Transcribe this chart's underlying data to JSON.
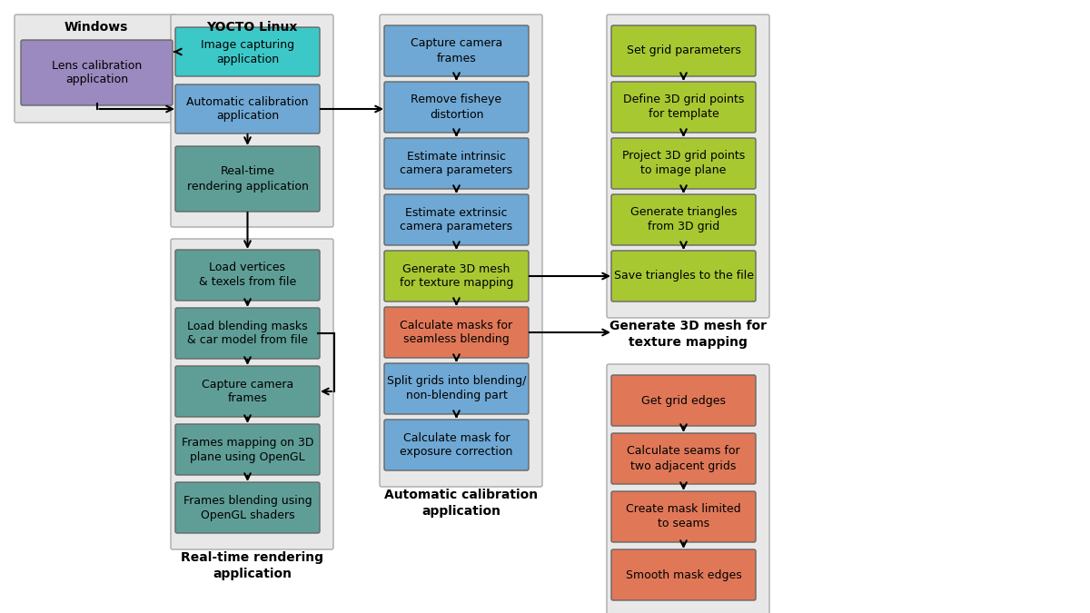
{
  "colors": {
    "purple": "#9b8abf",
    "teal_bright": "#3dc8c8",
    "blue_med": "#6fa8d4",
    "teal_dark": "#5f9e96",
    "green_bright": "#a8c832",
    "orange_red": "#e07858",
    "panel_bg": "#e8e8e8",
    "white_bg": "#ffffff"
  },
  "box_windows": {
    "text": "Lens calibration\napplication",
    "color": "purple"
  },
  "yocto_boxes_top": [
    {
      "text": "Image capturing\napplication",
      "color": "teal_bright"
    },
    {
      "text": "Automatic calibration\napplication",
      "color": "blue_med"
    },
    {
      "text": "Real-time\nrendering application",
      "color": "teal_dark"
    }
  ],
  "yocto_boxes_bottom": [
    {
      "text": "Load vertices\n& texels from file",
      "color": "teal_dark"
    },
    {
      "text": "Load blending masks\n& car model from file",
      "color": "teal_dark"
    },
    {
      "text": "Capture camera\nframes",
      "color": "teal_dark"
    },
    {
      "text": "Frames mapping on 3D\nplane using OpenGL",
      "color": "teal_dark"
    },
    {
      "text": "Frames blending using\nOpenGL shaders",
      "color": "teal_dark"
    }
  ],
  "col3_boxes": [
    {
      "text": "Capture camera\nframes",
      "color": "blue_med"
    },
    {
      "text": "Remove fisheye\ndistortion",
      "color": "blue_med"
    },
    {
      "text": "Estimate intrinsic\ncamera parameters",
      "color": "blue_med"
    },
    {
      "text": "Estimate extrinsic\ncamera parameters",
      "color": "blue_med"
    },
    {
      "text": "Generate 3D mesh\nfor texture mapping",
      "color": "green_bright"
    },
    {
      "text": "Calculate masks for\nseamless blending",
      "color": "orange_red"
    },
    {
      "text": "Split grids into blending/\nnon-blending part",
      "color": "blue_med"
    },
    {
      "text": "Calculate mask for\nexposure correction",
      "color": "blue_med"
    }
  ],
  "col4a_boxes": [
    {
      "text": "Set grid parameters",
      "color": "green_bright"
    },
    {
      "text": "Define 3D grid points\nfor template",
      "color": "green_bright"
    },
    {
      "text": "Project 3D grid points\nto image plane",
      "color": "green_bright"
    },
    {
      "text": "Generate triangles\nfrom 3D grid",
      "color": "green_bright"
    },
    {
      "text": "Save triangles to the file",
      "color": "green_bright"
    }
  ],
  "col4b_boxes": [
    {
      "text": "Get grid edges",
      "color": "orange_red"
    },
    {
      "text": "Calculate seams for\ntwo adjacent grids",
      "color": "orange_red"
    },
    {
      "text": "Create mask limited\nto seams",
      "color": "orange_red"
    },
    {
      "text": "Smooth mask edges",
      "color": "orange_red"
    }
  ]
}
